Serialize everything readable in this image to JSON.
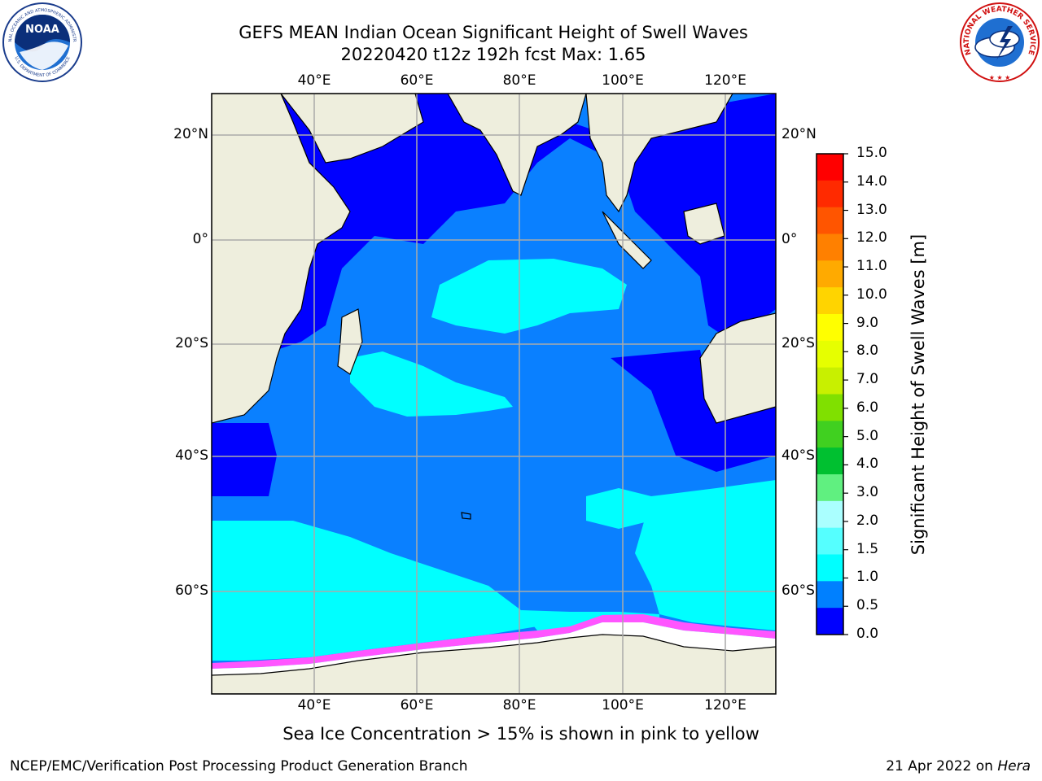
{
  "title_line1": "GEFS MEAN Indian Ocean Significant Height of Swell Waves",
  "title_line2": "20220420 t12z 192h fcst   Max: 1.65",
  "logos": {
    "left_icon": "noaa-logo",
    "left_text_top": "NATIONAL OCEANIC AND ATMOSPHERIC ADMINISTRATION",
    "left_text_bottom": "U.S. DEPARTMENT OF COMMERCE",
    "left_center": "NOAA",
    "right_icon": "nws-logo",
    "right_text": "NATIONAL WEATHER SERVICE"
  },
  "map": {
    "lon_ticks_top": [
      "40°E",
      "60°E",
      "80°E",
      "100°E",
      "120°E"
    ],
    "lon_ticks_bottom": [
      "40°E",
      "60°E",
      "80°E",
      "100°E",
      "120°E"
    ],
    "lat_ticks_left": [
      "20°N",
      "0°",
      "20°S",
      "40°S",
      "60°S"
    ],
    "lat_ticks_right": [
      "20°N",
      "0°",
      "20°S",
      "40°S",
      "60°S"
    ],
    "lon_range": [
      20,
      130
    ],
    "lat_range": [
      -72,
      28
    ]
  },
  "colorbar": {
    "label": "Significant Height of Swell Waves [m]",
    "ticks": [
      "15.0",
      "14.0",
      "13.0",
      "12.0",
      "11.0",
      "10.0",
      "9.0",
      "8.0",
      "7.0",
      "6.0",
      "5.0",
      "4.0",
      "3.0",
      "2.0",
      "1.5",
      "1.0",
      "0.5",
      "0.0"
    ],
    "colors": [
      "#ff0000",
      "#ff2a00",
      "#ff5500",
      "#ff8000",
      "#ffaa00",
      "#ffd400",
      "#ffff00",
      "#e6ff00",
      "#c8f000",
      "#80e000",
      "#40d020",
      "#00c030",
      "#60f080",
      "#aaffff",
      "#55ffff",
      "#00ffff",
      "#0080ff",
      "#0000ff"
    ]
  },
  "legend_colors": {
    "land": "#eeeedd",
    "ocean_low": "#0000ff",
    "ocean_mid": "#0a80ff",
    "ocean_high": "#00ffff",
    "sea_ice": "#ffffff",
    "ice_edge": "#ff55ff",
    "grid": "#aaaaaa"
  },
  "caption": "Sea Ice Concentration > 15% is shown in pink to yellow",
  "footer_left": "NCEP/EMC/Verification Post Processing Product Generation Branch",
  "footer_right": "21 Apr 2022 on Hera"
}
